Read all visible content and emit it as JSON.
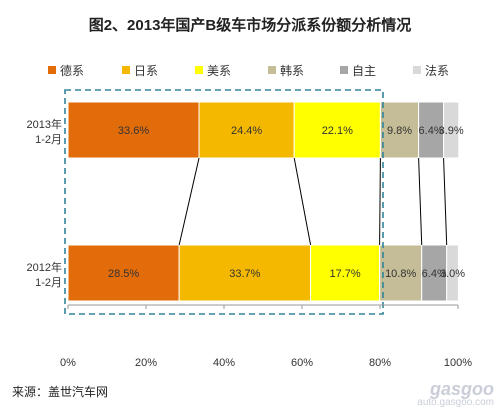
{
  "chart_data": {
    "type": "bar",
    "title": "图2、2013年国产B级车市场分派系份额分析情况",
    "categories": [
      "2013年\n1-2月",
      "2012年\n1-2月"
    ],
    "series": [
      {
        "name": "德系",
        "color": "#e26b0a",
        "values": [
          33.6,
          28.5
        ]
      },
      {
        "name": "日系",
        "color": "#f5b800",
        "values": [
          24.4,
          33.7
        ]
      },
      {
        "name": "美系",
        "color": "#ffff00",
        "values": [
          22.1,
          17.7
        ]
      },
      {
        "name": "韩系",
        "color": "#c4bd97",
        "values": [
          9.8,
          10.8
        ]
      },
      {
        "name": "自主",
        "color": "#a6a6a6",
        "values": [
          6.4,
          6.4
        ]
      },
      {
        "name": "法系",
        "color": "#d9d9d9",
        "values": [
          3.9,
          3.0
        ]
      }
    ],
    "value_labels": [
      [
        "33.6%",
        "24.4%",
        "22.1%",
        "9.8%",
        "6.4%",
        "3.9%"
      ],
      [
        "28.5%",
        "33.7%",
        "17.7%",
        "10.8%",
        "6.4%",
        "3.0%"
      ]
    ],
    "xlim": [
      0,
      100
    ],
    "xticks": [
      "0%",
      "20%",
      "40%",
      "60%",
      "80%",
      "100%"
    ],
    "stacked": true,
    "orientation": "horizontal",
    "legend": "top",
    "grid": false,
    "highlight_range": [
      0,
      80
    ]
  },
  "source": "来源：盖世汽车网",
  "watermark": {
    "logo": "gasgoo",
    "url": "auto.gasgoo.com"
  }
}
